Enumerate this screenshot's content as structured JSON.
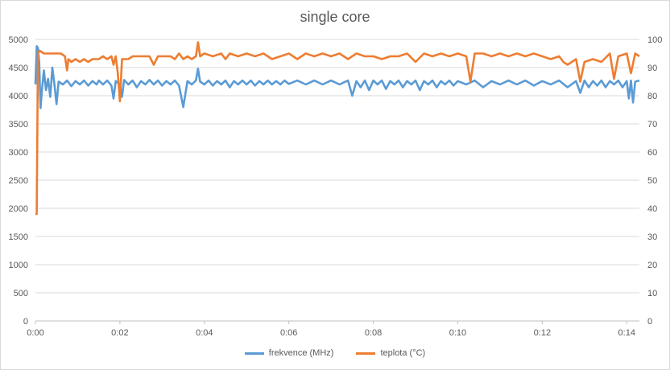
{
  "chart_data": {
    "type": "line",
    "title": "single core",
    "x_ticks": [
      "0:00",
      "0:02",
      "0:04",
      "0:06",
      "0:08",
      "0:10",
      "0:12",
      "0:14"
    ],
    "x_tick_minutes": [
      0,
      2,
      4,
      6,
      8,
      10,
      12,
      14
    ],
    "x_range_minutes": [
      0,
      14.3
    ],
    "y_left": {
      "range": [
        0,
        5000
      ],
      "ticks": [
        0,
        500,
        1000,
        1500,
        2000,
        2500,
        3000,
        3500,
        4000,
        4500,
        5000
      ]
    },
    "y_right": {
      "range": [
        0,
        100
      ],
      "ticks": [
        0,
        10,
        20,
        30,
        40,
        50,
        60,
        70,
        80,
        90,
        100
      ]
    },
    "grid": true,
    "legend_position": "bottom",
    "series": [
      {
        "name": "frekvence (MHz)",
        "axis": "left",
        "color": "#5b9bd5",
        "points": [
          [
            0,
            4200
          ],
          [
            0.03,
            4880
          ],
          [
            0.06,
            4850
          ],
          [
            0.09,
            4600
          ],
          [
            0.12,
            3780
          ],
          [
            0.16,
            4150
          ],
          [
            0.2,
            4450
          ],
          [
            0.25,
            4100
          ],
          [
            0.3,
            4300
          ],
          [
            0.35,
            3980
          ],
          [
            0.4,
            4500
          ],
          [
            0.45,
            4200
          ],
          [
            0.5,
            3850
          ],
          [
            0.55,
            4250
          ],
          [
            0.65,
            4200
          ],
          [
            0.75,
            4270
          ],
          [
            0.85,
            4170
          ],
          [
            0.95,
            4260
          ],
          [
            1.05,
            4200
          ],
          [
            1.15,
            4270
          ],
          [
            1.25,
            4180
          ],
          [
            1.35,
            4260
          ],
          [
            1.45,
            4200
          ],
          [
            1.5,
            4270
          ],
          [
            1.6,
            4200
          ],
          [
            1.7,
            4270
          ],
          [
            1.8,
            4180
          ],
          [
            1.85,
            3950
          ],
          [
            1.9,
            4260
          ],
          [
            2.0,
            4200
          ],
          [
            2.05,
            3980
          ],
          [
            2.1,
            4280
          ],
          [
            2.2,
            4200
          ],
          [
            2.3,
            4270
          ],
          [
            2.4,
            4150
          ],
          [
            2.5,
            4260
          ],
          [
            2.6,
            4200
          ],
          [
            2.7,
            4280
          ],
          [
            2.8,
            4200
          ],
          [
            2.9,
            4270
          ],
          [
            3.0,
            4180
          ],
          [
            3.1,
            4260
          ],
          [
            3.2,
            4200
          ],
          [
            3.3,
            4270
          ],
          [
            3.4,
            4180
          ],
          [
            3.5,
            3800
          ],
          [
            3.6,
            4260
          ],
          [
            3.7,
            4200
          ],
          [
            3.8,
            4270
          ],
          [
            3.85,
            4480
          ],
          [
            3.9,
            4250
          ],
          [
            4.0,
            4200
          ],
          [
            4.1,
            4270
          ],
          [
            4.2,
            4180
          ],
          [
            4.3,
            4260
          ],
          [
            4.4,
            4200
          ],
          [
            4.5,
            4270
          ],
          [
            4.6,
            4150
          ],
          [
            4.7,
            4260
          ],
          [
            4.8,
            4200
          ],
          [
            4.9,
            4270
          ],
          [
            5.0,
            4200
          ],
          [
            5.1,
            4270
          ],
          [
            5.2,
            4180
          ],
          [
            5.3,
            4260
          ],
          [
            5.4,
            4200
          ],
          [
            5.5,
            4270
          ],
          [
            5.6,
            4200
          ],
          [
            5.7,
            4260
          ],
          [
            5.8,
            4200
          ],
          [
            5.9,
            4270
          ],
          [
            6.0,
            4210
          ],
          [
            6.2,
            4270
          ],
          [
            6.4,
            4200
          ],
          [
            6.6,
            4270
          ],
          [
            6.8,
            4200
          ],
          [
            7.0,
            4270
          ],
          [
            7.2,
            4200
          ],
          [
            7.4,
            4270
          ],
          [
            7.5,
            4000
          ],
          [
            7.6,
            4260
          ],
          [
            7.7,
            4150
          ],
          [
            7.8,
            4270
          ],
          [
            7.9,
            4100
          ],
          [
            8.0,
            4270
          ],
          [
            8.1,
            4200
          ],
          [
            8.2,
            4270
          ],
          [
            8.3,
            4120
          ],
          [
            8.4,
            4260
          ],
          [
            8.5,
            4200
          ],
          [
            8.6,
            4270
          ],
          [
            8.7,
            4150
          ],
          [
            8.8,
            4260
          ],
          [
            8.9,
            4200
          ],
          [
            9.0,
            4270
          ],
          [
            9.1,
            4100
          ],
          [
            9.2,
            4260
          ],
          [
            9.3,
            4200
          ],
          [
            9.4,
            4270
          ],
          [
            9.5,
            4150
          ],
          [
            9.6,
            4260
          ],
          [
            9.7,
            4200
          ],
          [
            9.8,
            4270
          ],
          [
            9.9,
            4180
          ],
          [
            10.0,
            4260
          ],
          [
            10.2,
            4200
          ],
          [
            10.4,
            4270
          ],
          [
            10.6,
            4150
          ],
          [
            10.8,
            4260
          ],
          [
            11.0,
            4200
          ],
          [
            11.2,
            4270
          ],
          [
            11.4,
            4200
          ],
          [
            11.6,
            4270
          ],
          [
            11.8,
            4180
          ],
          [
            12.0,
            4260
          ],
          [
            12.2,
            4200
          ],
          [
            12.4,
            4270
          ],
          [
            12.6,
            4150
          ],
          [
            12.8,
            4260
          ],
          [
            12.9,
            4050
          ],
          [
            13.0,
            4270
          ],
          [
            13.1,
            4150
          ],
          [
            13.2,
            4260
          ],
          [
            13.3,
            4180
          ],
          [
            13.4,
            4270
          ],
          [
            13.5,
            4150
          ],
          [
            13.6,
            4260
          ],
          [
            13.7,
            4200
          ],
          [
            13.8,
            4270
          ],
          [
            13.9,
            4150
          ],
          [
            14.0,
            4260
          ],
          [
            14.05,
            3950
          ],
          [
            14.1,
            4270
          ],
          [
            14.15,
            3880
          ],
          [
            14.2,
            4250
          ],
          [
            14.3,
            4270
          ]
        ]
      },
      {
        "name": "teplota (°C)",
        "axis": "right",
        "color": "#ed7d31",
        "points": [
          [
            0,
            38
          ],
          [
            0.03,
            38
          ],
          [
            0.06,
            95
          ],
          [
            0.1,
            96
          ],
          [
            0.2,
            95
          ],
          [
            0.3,
            95
          ],
          [
            0.4,
            95
          ],
          [
            0.5,
            95
          ],
          [
            0.6,
            95
          ],
          [
            0.7,
            94
          ],
          [
            0.75,
            89
          ],
          [
            0.78,
            93
          ],
          [
            0.85,
            92
          ],
          [
            0.95,
            93
          ],
          [
            1.05,
            92
          ],
          [
            1.15,
            93
          ],
          [
            1.25,
            92
          ],
          [
            1.35,
            93
          ],
          [
            1.5,
            93
          ],
          [
            1.6,
            94
          ],
          [
            1.7,
            93
          ],
          [
            1.8,
            94
          ],
          [
            1.85,
            91
          ],
          [
            1.9,
            94
          ],
          [
            1.95,
            88
          ],
          [
            2.0,
            78
          ],
          [
            2.05,
            93
          ],
          [
            2.2,
            93
          ],
          [
            2.3,
            94
          ],
          [
            2.5,
            94
          ],
          [
            2.7,
            94
          ],
          [
            2.8,
            91
          ],
          [
            2.9,
            94
          ],
          [
            3.0,
            94
          ],
          [
            3.2,
            94
          ],
          [
            3.3,
            93
          ],
          [
            3.4,
            95
          ],
          [
            3.5,
            93
          ],
          [
            3.6,
            94
          ],
          [
            3.7,
            93
          ],
          [
            3.8,
            94
          ],
          [
            3.85,
            99
          ],
          [
            3.9,
            94
          ],
          [
            4.0,
            95
          ],
          [
            4.2,
            94
          ],
          [
            4.4,
            95
          ],
          [
            4.5,
            93
          ],
          [
            4.6,
            95
          ],
          [
            4.8,
            94
          ],
          [
            5.0,
            95
          ],
          [
            5.2,
            94
          ],
          [
            5.4,
            95
          ],
          [
            5.6,
            93
          ],
          [
            5.8,
            94
          ],
          [
            6.0,
            95
          ],
          [
            6.2,
            93
          ],
          [
            6.4,
            95
          ],
          [
            6.6,
            94
          ],
          [
            6.8,
            95
          ],
          [
            7.0,
            94
          ],
          [
            7.2,
            95
          ],
          [
            7.4,
            93
          ],
          [
            7.6,
            95
          ],
          [
            7.8,
            94
          ],
          [
            8.0,
            94
          ],
          [
            8.2,
            93
          ],
          [
            8.4,
            94
          ],
          [
            8.6,
            94
          ],
          [
            8.8,
            95
          ],
          [
            9.0,
            92
          ],
          [
            9.2,
            95
          ],
          [
            9.4,
            94
          ],
          [
            9.6,
            95
          ],
          [
            9.8,
            94
          ],
          [
            10.0,
            95
          ],
          [
            10.2,
            94
          ],
          [
            10.3,
            85
          ],
          [
            10.4,
            95
          ],
          [
            10.6,
            95
          ],
          [
            10.8,
            94
          ],
          [
            11.0,
            95
          ],
          [
            11.2,
            94
          ],
          [
            11.4,
            95
          ],
          [
            11.6,
            94
          ],
          [
            11.8,
            95
          ],
          [
            12.0,
            94
          ],
          [
            12.2,
            93
          ],
          [
            12.4,
            94
          ],
          [
            12.5,
            92
          ],
          [
            12.6,
            91
          ],
          [
            12.7,
            92
          ],
          [
            12.8,
            93
          ],
          [
            12.9,
            85
          ],
          [
            13.0,
            92
          ],
          [
            13.2,
            93
          ],
          [
            13.4,
            92
          ],
          [
            13.6,
            95
          ],
          [
            13.7,
            86
          ],
          [
            13.8,
            94
          ],
          [
            14.0,
            95
          ],
          [
            14.1,
            88
          ],
          [
            14.2,
            95
          ],
          [
            14.3,
            94
          ]
        ]
      }
    ]
  }
}
